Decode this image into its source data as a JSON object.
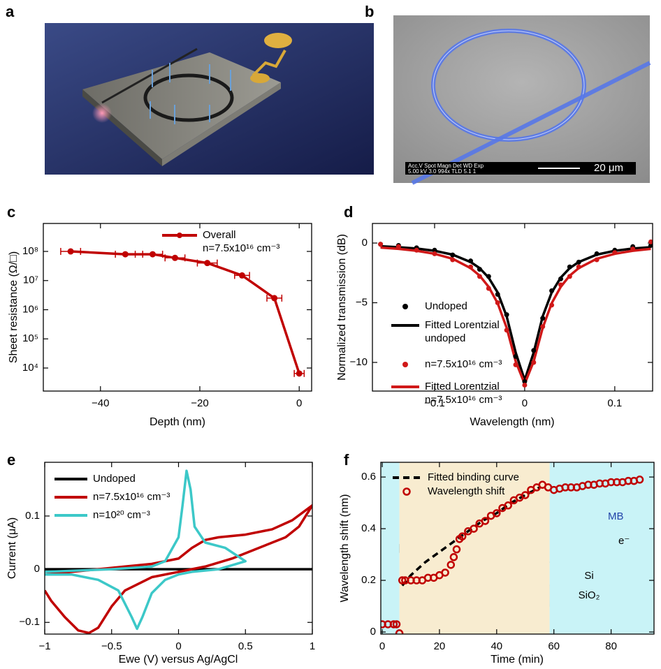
{
  "panels": [
    {
      "label": "a"
    },
    {
      "label": "b",
      "sem_header": "Acc.V   Spot Magn    Det  WD  Exp",
      "sem_values": "5.00 kV 3.0   994x     TLD 5.1   1",
      "scale_bar": "20 μm"
    }
  ],
  "chart_data": [
    {
      "panel": "c",
      "type": "line",
      "ylog": true,
      "xlabel": "Depth (nm)",
      "ylabel": "Sheet resistance (Ω/□)",
      "xlim": [
        -51.5,
        2.5
      ],
      "xticks": [
        {
          "value": -40,
          "label": "−40"
        },
        {
          "value": -20,
          "label": "−20"
        },
        0
      ],
      "ylim": [
        1620,
        910000000
      ],
      "yticks": [
        {
          "value": 10000,
          "label": "10⁴"
        },
        {
          "value": 100000,
          "label": "10⁵"
        },
        {
          "value": 1000000,
          "label": "10⁶"
        },
        {
          "value": 10000000,
          "label": "10⁷"
        },
        {
          "value": 100000000,
          "label": "10⁸"
        }
      ],
      "x": [
        -46,
        -35,
        -29.5,
        -25,
        -18.5,
        -11.5,
        -5,
        0
      ],
      "series": [
        {
          "name": "Overall\nn=7.5x10¹⁶ cm⁻³",
          "color": "#c00000",
          "mode": "line+markers",
          "values": [
            100000000,
            80000000,
            80000000,
            60000000,
            40000000,
            15000000,
            2500000,
            6500
          ],
          "xerr": [
            2,
            2,
            2,
            2,
            2,
            1.5,
            1.5,
            1
          ]
        }
      ]
    },
    {
      "panel": "d",
      "type": "line",
      "xlabel": "Wavelength (nm)",
      "ylabel": "Normalized transmission (dB)",
      "xlim": [
        -0.169,
        0.142
      ],
      "xticks": [
        {
          "value": -0.1,
          "label": "−0.1"
        },
        0,
        0.1
      ],
      "ylim": [
        -12.4,
        1.64
      ],
      "yticks": [
        {
          "value": -10,
          "label": "−10"
        },
        {
          "value": -5,
          "label": "−5"
        },
        0
      ],
      "x": [
        -0.16,
        -0.14,
        -0.12,
        -0.1,
        -0.08,
        -0.06,
        -0.05,
        -0.04,
        -0.03,
        -0.02,
        -0.01,
        0,
        0.01,
        0.02,
        0.03,
        0.04,
        0.05,
        0.06,
        0.08,
        0.1,
        0.12,
        0.14
      ],
      "series": [
        {
          "name": "Undoped",
          "color": "#000000",
          "mode": "markers",
          "values": [
            -0.1,
            -0.2,
            -0.4,
            -0.6,
            -1.0,
            -1.5,
            -2.2,
            -2.8,
            -4.3,
            -6.0,
            -9.5,
            -11.6,
            -9.0,
            -6.3,
            -4.0,
            -3.0,
            -2.0,
            -1.6,
            -0.9,
            -0.6,
            -0.3,
            -0.2
          ]
        },
        {
          "name": "Fitted Lorentzial\nundoped",
          "color": "#000000",
          "mode": "line",
          "values": [
            -0.27,
            -0.35,
            -0.46,
            -0.65,
            -0.97,
            -1.59,
            -2.1,
            -2.9,
            -4.14,
            -6.14,
            -9.17,
            -11.49,
            -9.17,
            -6.14,
            -4.14,
            -2.9,
            -2.1,
            -1.59,
            -0.97,
            -0.65,
            -0.46,
            -0.35
          ]
        },
        {
          "name": "n=7.5x10¹⁶ cm⁻³",
          "color": "#d01818",
          "mode": "markers",
          "values": [
            -0.1,
            -0.3,
            -0.6,
            -0.9,
            -1.4,
            -2.0,
            -2.8,
            -3.8,
            -5.0,
            -7.3,
            -10.2,
            -11.9,
            -10.0,
            -7.0,
            -5.2,
            -3.5,
            -2.8,
            -2.0,
            -1.4,
            -0.8,
            -0.5,
            0.1
          ]
        },
        {
          "name": "Fitted Lorentzial\nn=7.5x10¹⁶ cm⁻³",
          "color": "#d01818",
          "mode": "line",
          "values": [
            -0.38,
            -0.49,
            -0.65,
            -0.9,
            -1.32,
            -2.1,
            -2.73,
            -3.67,
            -5.04,
            -7.1,
            -9.91,
            -11.8,
            -9.91,
            -7.1,
            -5.04,
            -3.67,
            -2.73,
            -2.1,
            -1.32,
            -0.9,
            -0.65,
            -0.49
          ]
        }
      ]
    },
    {
      "panel": "e",
      "type": "line",
      "xlabel": "Ewe (V) versus Ag/AgCl",
      "ylabel": "Current (μA)",
      "xlim": [
        -1,
        1
      ],
      "xticks": [
        {
          "value": -1,
          "label": "−1"
        },
        {
          "value": -0.5,
          "label": "−0.5"
        },
        0,
        0.5,
        1
      ],
      "ylim": [
        -0.122,
        0.201
      ],
      "yticks": [
        {
          "value": -0.1,
          "label": "−0.1"
        },
        0,
        0.1
      ],
      "series": [
        {
          "name": "Undoped",
          "color": "#000000",
          "mode": "line",
          "x": [
            -1,
            1
          ],
          "values": [
            0,
            0
          ]
        },
        {
          "name": "n=7.5x10¹⁶ cm⁻³",
          "color": "#c00000",
          "mode": "line",
          "x": [
            -1,
            -0.8,
            -0.6,
            -0.4,
            -0.2,
            0,
            0.1,
            0.2,
            0.3,
            0.5,
            0.7,
            0.85,
            1,
            0.9,
            0.8,
            0.6,
            0.4,
            0.2,
            0,
            -0.2,
            -0.4,
            -0.5,
            -0.6,
            -0.67,
            -0.75,
            -0.85,
            -0.95,
            -1
          ],
          "values": [
            -0.01,
            -0.005,
            0.0,
            0.005,
            0.01,
            0.02,
            0.04,
            0.055,
            0.06,
            0.065,
            0.075,
            0.092,
            0.12,
            0.08,
            0.06,
            0.04,
            0.02,
            0.005,
            -0.005,
            -0.015,
            -0.04,
            -0.07,
            -0.11,
            -0.12,
            -0.115,
            -0.09,
            -0.06,
            -0.04
          ]
        },
        {
          "name": "n=10²⁰ cm⁻³",
          "color": "#3cc8c8",
          "mode": "line",
          "x": [
            -1,
            -0.5,
            -0.2,
            -0.1,
            0,
            0.03,
            0.06,
            0.09,
            0.12,
            0.2,
            0.35,
            0.5,
            0.3,
            0.1,
            0,
            -0.1,
            -0.2,
            -0.27,
            -0.31,
            -0.35,
            -0.45,
            -0.6,
            -0.8,
            -1
          ],
          "values": [
            -0.005,
            0.0,
            0.005,
            0.015,
            0.06,
            0.12,
            0.185,
            0.15,
            0.08,
            0.05,
            0.04,
            0.015,
            0.0,
            -0.005,
            -0.01,
            -0.02,
            -0.045,
            -0.09,
            -0.112,
            -0.09,
            -0.04,
            -0.02,
            -0.01,
            -0.01
          ]
        }
      ]
    },
    {
      "panel": "f",
      "type": "line",
      "xlabel": "Time (min)",
      "ylabel": "Wavelength shift (nm)",
      "xlim": [
        -0.5,
        95
      ],
      "xticks": [
        0,
        20,
        40,
        60,
        80
      ],
      "ylim": [
        -0.008,
        0.657
      ],
      "yticks": [
        0,
        0.2,
        0.4,
        0.6
      ],
      "bands": [
        {
          "from": -0.5,
          "to": 6,
          "color": "#c9f3f7"
        },
        {
          "from": 6,
          "to": 58.5,
          "color": "#f8ecd0"
        },
        {
          "from": 58.5,
          "to": 95,
          "color": "#c9f3f7"
        }
      ],
      "inset_labels": [
        "MB",
        "e⁻",
        "Si",
        "SiO₂"
      ],
      "series": [
        {
          "name": "Fitted binding curve",
          "color": "#000000",
          "mode": "line",
          "dash": true,
          "x": [
            7,
            10,
            15,
            20,
            25,
            30,
            35,
            40,
            45,
            50,
            55
          ],
          "values": [
            0.18,
            0.22,
            0.27,
            0.31,
            0.35,
            0.39,
            0.43,
            0.46,
            0.5,
            0.53,
            0.56
          ]
        },
        {
          "name": "Wavelength shift",
          "color": "#c00000",
          "mode": "markers",
          "hollow": true,
          "x": [
            0,
            2,
            4,
            5,
            6,
            7,
            8,
            10,
            12,
            14,
            16,
            18,
            20,
            22,
            24,
            25,
            26,
            27,
            28,
            30,
            32,
            34,
            36,
            38,
            40,
            42,
            44,
            46,
            48,
            50,
            52,
            54,
            56,
            58,
            60,
            62,
            64,
            66,
            68,
            70,
            72,
            74,
            76,
            78,
            80,
            82,
            84,
            86,
            88,
            90
          ],
          "values": [
            0.03,
            0.03,
            0.03,
            0.03,
            -0.005,
            0.2,
            0.2,
            0.2,
            0.2,
            0.2,
            0.21,
            0.21,
            0.22,
            0.23,
            0.26,
            0.29,
            0.32,
            0.36,
            0.37,
            0.39,
            0.4,
            0.42,
            0.43,
            0.45,
            0.46,
            0.48,
            0.49,
            0.51,
            0.52,
            0.53,
            0.55,
            0.56,
            0.57,
            0.56,
            0.55,
            0.555,
            0.56,
            0.56,
            0.56,
            0.565,
            0.57,
            0.57,
            0.575,
            0.575,
            0.58,
            0.58,
            0.58,
            0.585,
            0.585,
            0.59
          ]
        }
      ]
    }
  ]
}
